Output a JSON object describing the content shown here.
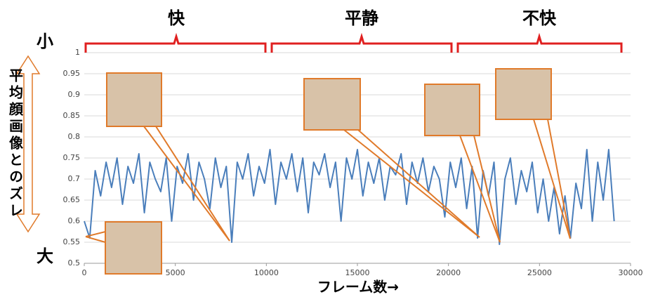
{
  "chart_data": {
    "type": "line",
    "y_label": "平均顔画像とのズレ",
    "x_label": "フレーム数→",
    "y_top_label": "小",
    "y_bottom_label": "大",
    "annotations": [
      "快",
      "平静",
      "不快"
    ],
    "x": [
      0,
      300,
      600,
      900,
      1200,
      1500,
      1800,
      2100,
      2400,
      2700,
      3000,
      3300,
      3600,
      3900,
      4200,
      4500,
      4800,
      5100,
      5400,
      5700,
      6000,
      6300,
      6600,
      6900,
      7200,
      7500,
      7800,
      8100,
      8400,
      8700,
      9000,
      9300,
      9600,
      9900,
      10200,
      10500,
      10800,
      11100,
      11400,
      11700,
      12000,
      12300,
      12600,
      12900,
      13200,
      13500,
      13800,
      14100,
      14400,
      14700,
      15000,
      15300,
      15600,
      15900,
      16200,
      16500,
      16800,
      17100,
      17400,
      17700,
      18000,
      18300,
      18600,
      18900,
      19200,
      19500,
      19800,
      20100,
      20400,
      20700,
      21000,
      21300,
      21600,
      21900,
      22200,
      22500,
      22800,
      23100,
      23400,
      23700,
      24000,
      24300,
      24600,
      24900,
      25200,
      25500,
      25800,
      26100,
      26400,
      26700,
      27000,
      27300,
      27600,
      27900,
      28200,
      28500,
      28800,
      29100
    ],
    "series": [
      {
        "color": "#4a7ebb",
        "values": [
          0.6,
          0.56,
          0.72,
          0.66,
          0.74,
          0.68,
          0.75,
          0.64,
          0.73,
          0.69,
          0.76,
          0.62,
          0.74,
          0.7,
          0.67,
          0.75,
          0.6,
          0.73,
          0.69,
          0.76,
          0.65,
          0.74,
          0.7,
          0.63,
          0.75,
          0.68,
          0.73,
          0.55,
          0.74,
          0.7,
          0.76,
          0.66,
          0.73,
          0.69,
          0.77,
          0.64,
          0.74,
          0.7,
          0.76,
          0.67,
          0.75,
          0.62,
          0.74,
          0.71,
          0.76,
          0.68,
          0.74,
          0.6,
          0.75,
          0.7,
          0.77,
          0.66,
          0.74,
          0.69,
          0.75,
          0.65,
          0.73,
          0.71,
          0.76,
          0.64,
          0.74,
          0.69,
          0.75,
          0.67,
          0.73,
          0.7,
          0.61,
          0.74,
          0.68,
          0.75,
          0.63,
          0.73,
          0.56,
          0.72,
          0.66,
          0.74,
          0.545,
          0.7,
          0.75,
          0.64,
          0.72,
          0.67,
          0.74,
          0.62,
          0.7,
          0.6,
          0.68,
          0.57,
          0.66,
          0.56,
          0.69,
          0.63,
          0.77,
          0.6,
          0.74,
          0.65,
          0.77,
          0.6
        ]
      }
    ],
    "xlim": [
      0,
      30000
    ],
    "xticks": [
      0,
      5000,
      10000,
      15000,
      20000,
      25000,
      30000
    ],
    "ylim": [
      0.5,
      1
    ],
    "yticks": [
      0.5,
      0.55,
      0.6,
      0.65,
      0.7,
      0.75,
      0.8,
      0.85,
      0.9,
      0.95,
      1
    ],
    "grid": true
  }
}
